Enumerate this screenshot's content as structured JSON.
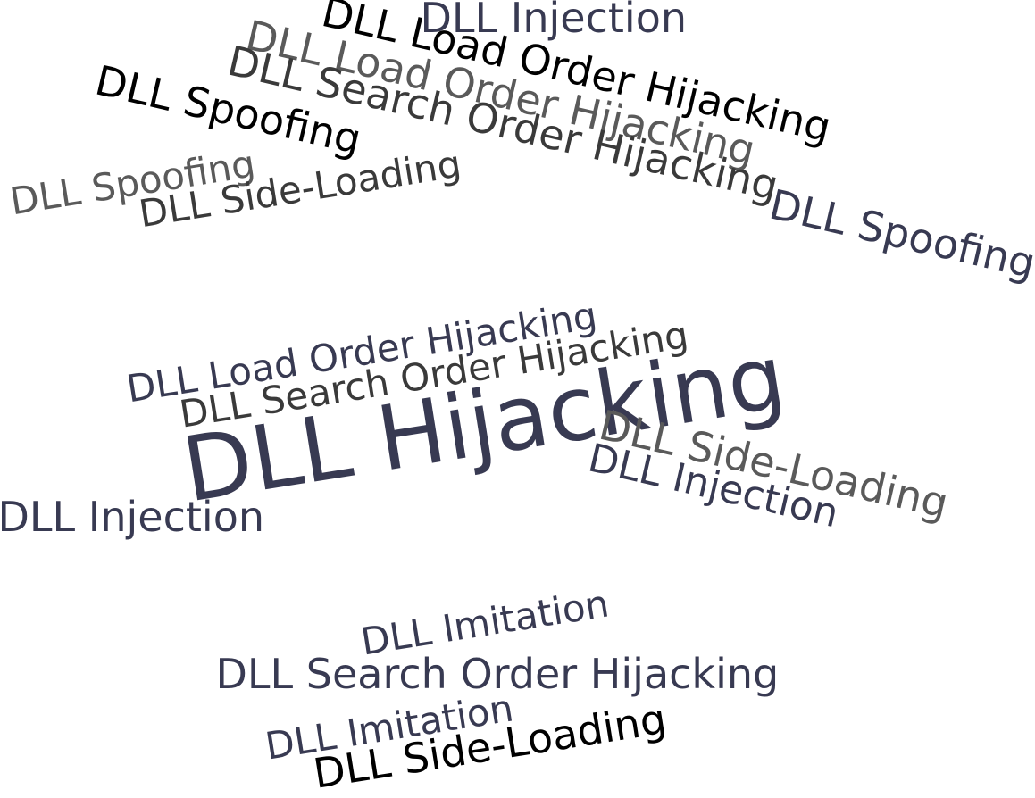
{
  "palette": {
    "black": "#000000",
    "navy": "#383a52",
    "dark_gray": "#3a3a3a",
    "gray": "#5a5a5a"
  },
  "words": [
    {
      "text": "DLL Injection",
      "color": "navy",
      "weight": "small"
    },
    {
      "text": "DLL Load Order Hijacking",
      "color": "black",
      "weight": "small"
    },
    {
      "text": "DLL Load Order Hijacking",
      "color": "gray",
      "weight": "small"
    },
    {
      "text": "DLL Search Order Hijacking",
      "color": "dark_gray",
      "weight": "small"
    },
    {
      "text": "DLL Spoofing",
      "color": "black",
      "weight": "small"
    },
    {
      "text": "DLL Spoofing",
      "color": "gray",
      "weight": "small"
    },
    {
      "text": "DLL Side-Loading",
      "color": "dark_gray",
      "weight": "small"
    },
    {
      "text": "DLL Spoofing",
      "color": "navy",
      "weight": "small"
    },
    {
      "text": "DLL Load Order Hijacking",
      "color": "navy",
      "weight": "small"
    },
    {
      "text": "DLL Search Order Hijacking",
      "color": "dark_gray",
      "weight": "small"
    },
    {
      "text": "DLL Hijacking",
      "color": "navy",
      "weight": "large"
    },
    {
      "text": "DLL Injection",
      "color": "navy",
      "weight": "small"
    },
    {
      "text": "DLL Side-Loading",
      "color": "gray",
      "weight": "small"
    },
    {
      "text": "DLL Injection",
      "color": "navy",
      "weight": "small"
    },
    {
      "text": "DLL Imitation",
      "color": "navy",
      "weight": "small"
    },
    {
      "text": "DLL Search Order Hijacking",
      "color": "navy",
      "weight": "small"
    },
    {
      "text": "DLL Imitation",
      "color": "navy",
      "weight": "small"
    },
    {
      "text": "DLL Side-Loading",
      "color": "black",
      "weight": "small"
    }
  ]
}
